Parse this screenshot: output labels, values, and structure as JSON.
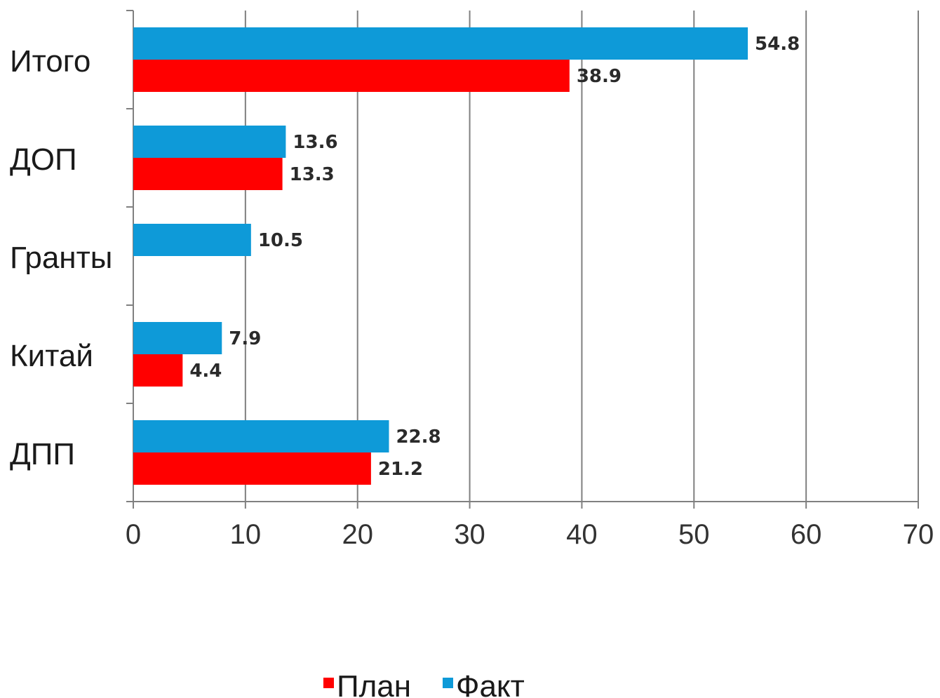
{
  "chart_data": {
    "type": "bar",
    "orientation": "horizontal",
    "categories": [
      "Итого",
      "ДОП",
      "Гранты",
      "Китай",
      "ДПП"
    ],
    "series": [
      {
        "name": "План",
        "color": "#ff0000",
        "values": [
          38.9,
          13.3,
          null,
          4.4,
          21.2
        ],
        "labels": [
          "38.9",
          "13.3",
          "",
          "4.4",
          "21.2"
        ]
      },
      {
        "name": "Факт",
        "color": "#0e9ad8",
        "values": [
          54.8,
          13.6,
          10.5,
          7.9,
          22.8
        ],
        "labels": [
          "54.8",
          "13.6",
          "10.5",
          "7.9",
          "22.8"
        ]
      }
    ],
    "xlim": [
      0,
      70
    ],
    "xticks": [
      "0",
      "10",
      "20",
      "30",
      "40",
      "50",
      "60",
      "70"
    ],
    "grid": "vertical",
    "legend": "bottom-center"
  }
}
